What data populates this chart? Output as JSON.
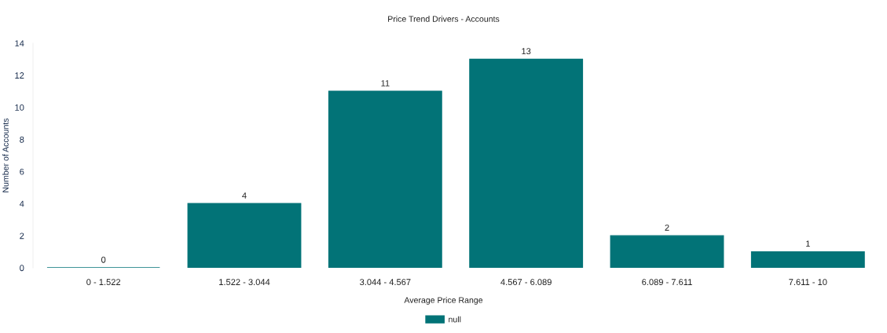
{
  "chart_data": {
    "type": "bar",
    "title": "Price Trend Drivers - Accounts",
    "xlabel": "Average Price Range",
    "ylabel": "Number of Accounts",
    "categories": [
      "0 - 1.522",
      "1.522 - 3.044",
      "3.044 - 4.567",
      "4.567 - 6.089",
      "6.089 - 7.611",
      "7.611 - 10"
    ],
    "series": [
      {
        "name": "null",
        "color": "#027377",
        "values": [
          0,
          4,
          11,
          13,
          2,
          1
        ]
      }
    ],
    "ylim": [
      0,
      14
    ],
    "yticks": [
      0,
      2,
      4,
      6,
      8,
      10,
      12,
      14
    ],
    "grid": false,
    "legend": "bottom",
    "data_labels": true
  }
}
